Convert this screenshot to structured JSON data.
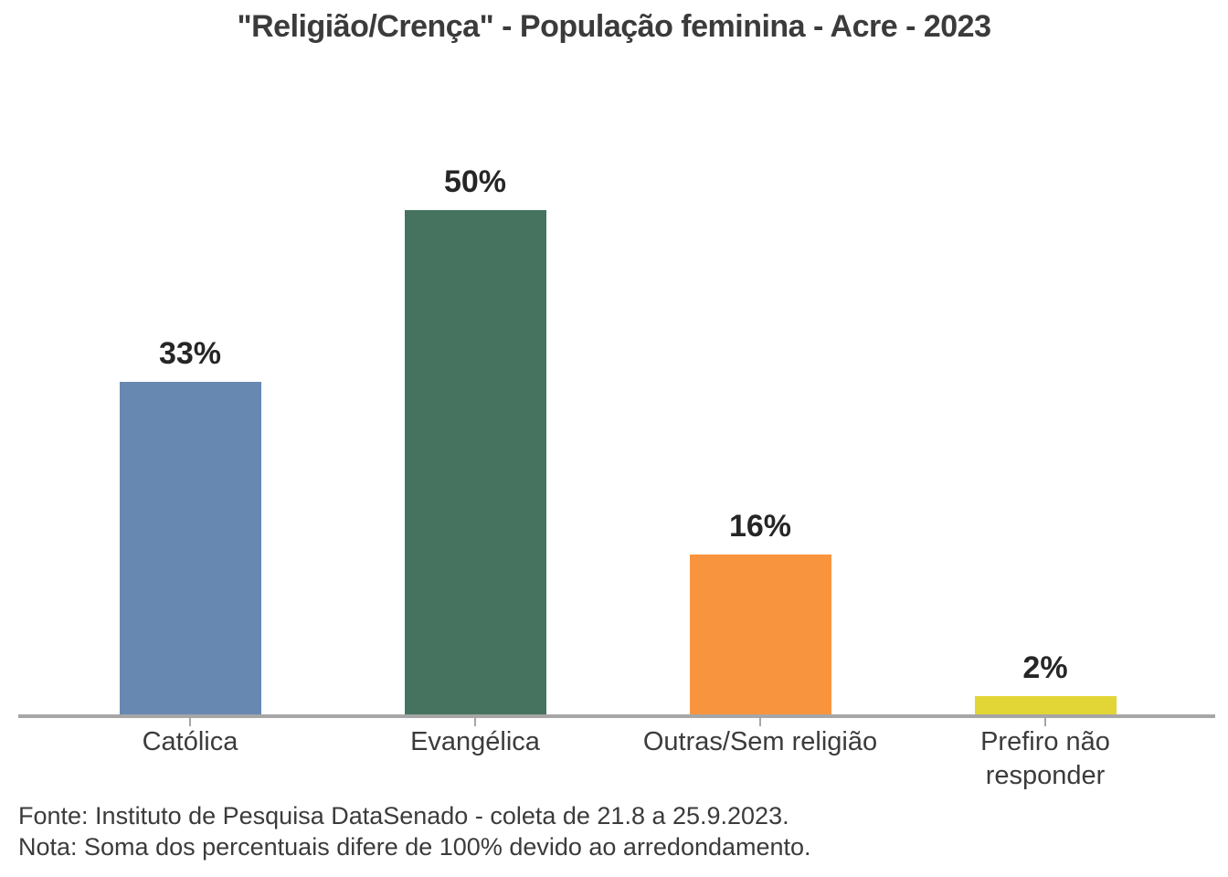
{
  "chart_data": {
    "type": "bar",
    "title": "\"Religião/Crença\" - População feminina - Acre - 2023",
    "categories": [
      "Católica",
      "Evangélica",
      "Outras/Sem religião",
      "Prefiro não responder"
    ],
    "category_labels": [
      "Católica",
      "Evangélica",
      "Outras/Sem religião",
      "Prefiro não\nresponder"
    ],
    "values": [
      33,
      50,
      16,
      2
    ],
    "unit": "%",
    "value_labels": [
      "33%",
      "50%",
      "16%",
      "2%"
    ],
    "colors": [
      "#6789b1",
      "#45735f",
      "#f9943e",
      "#e1d636"
    ],
    "xlabel": "",
    "ylabel": "",
    "ylim": [
      0,
      55
    ],
    "grid": false,
    "legend": "none",
    "axis_color": "#a6a6a6"
  },
  "footer": {
    "source": "Fonte: Instituto de Pesquisa DataSenado - coleta de 21.8 a 25.9.2023.",
    "note": "Nota: Soma dos percentuais difere de 100% devido ao arredondamento."
  }
}
